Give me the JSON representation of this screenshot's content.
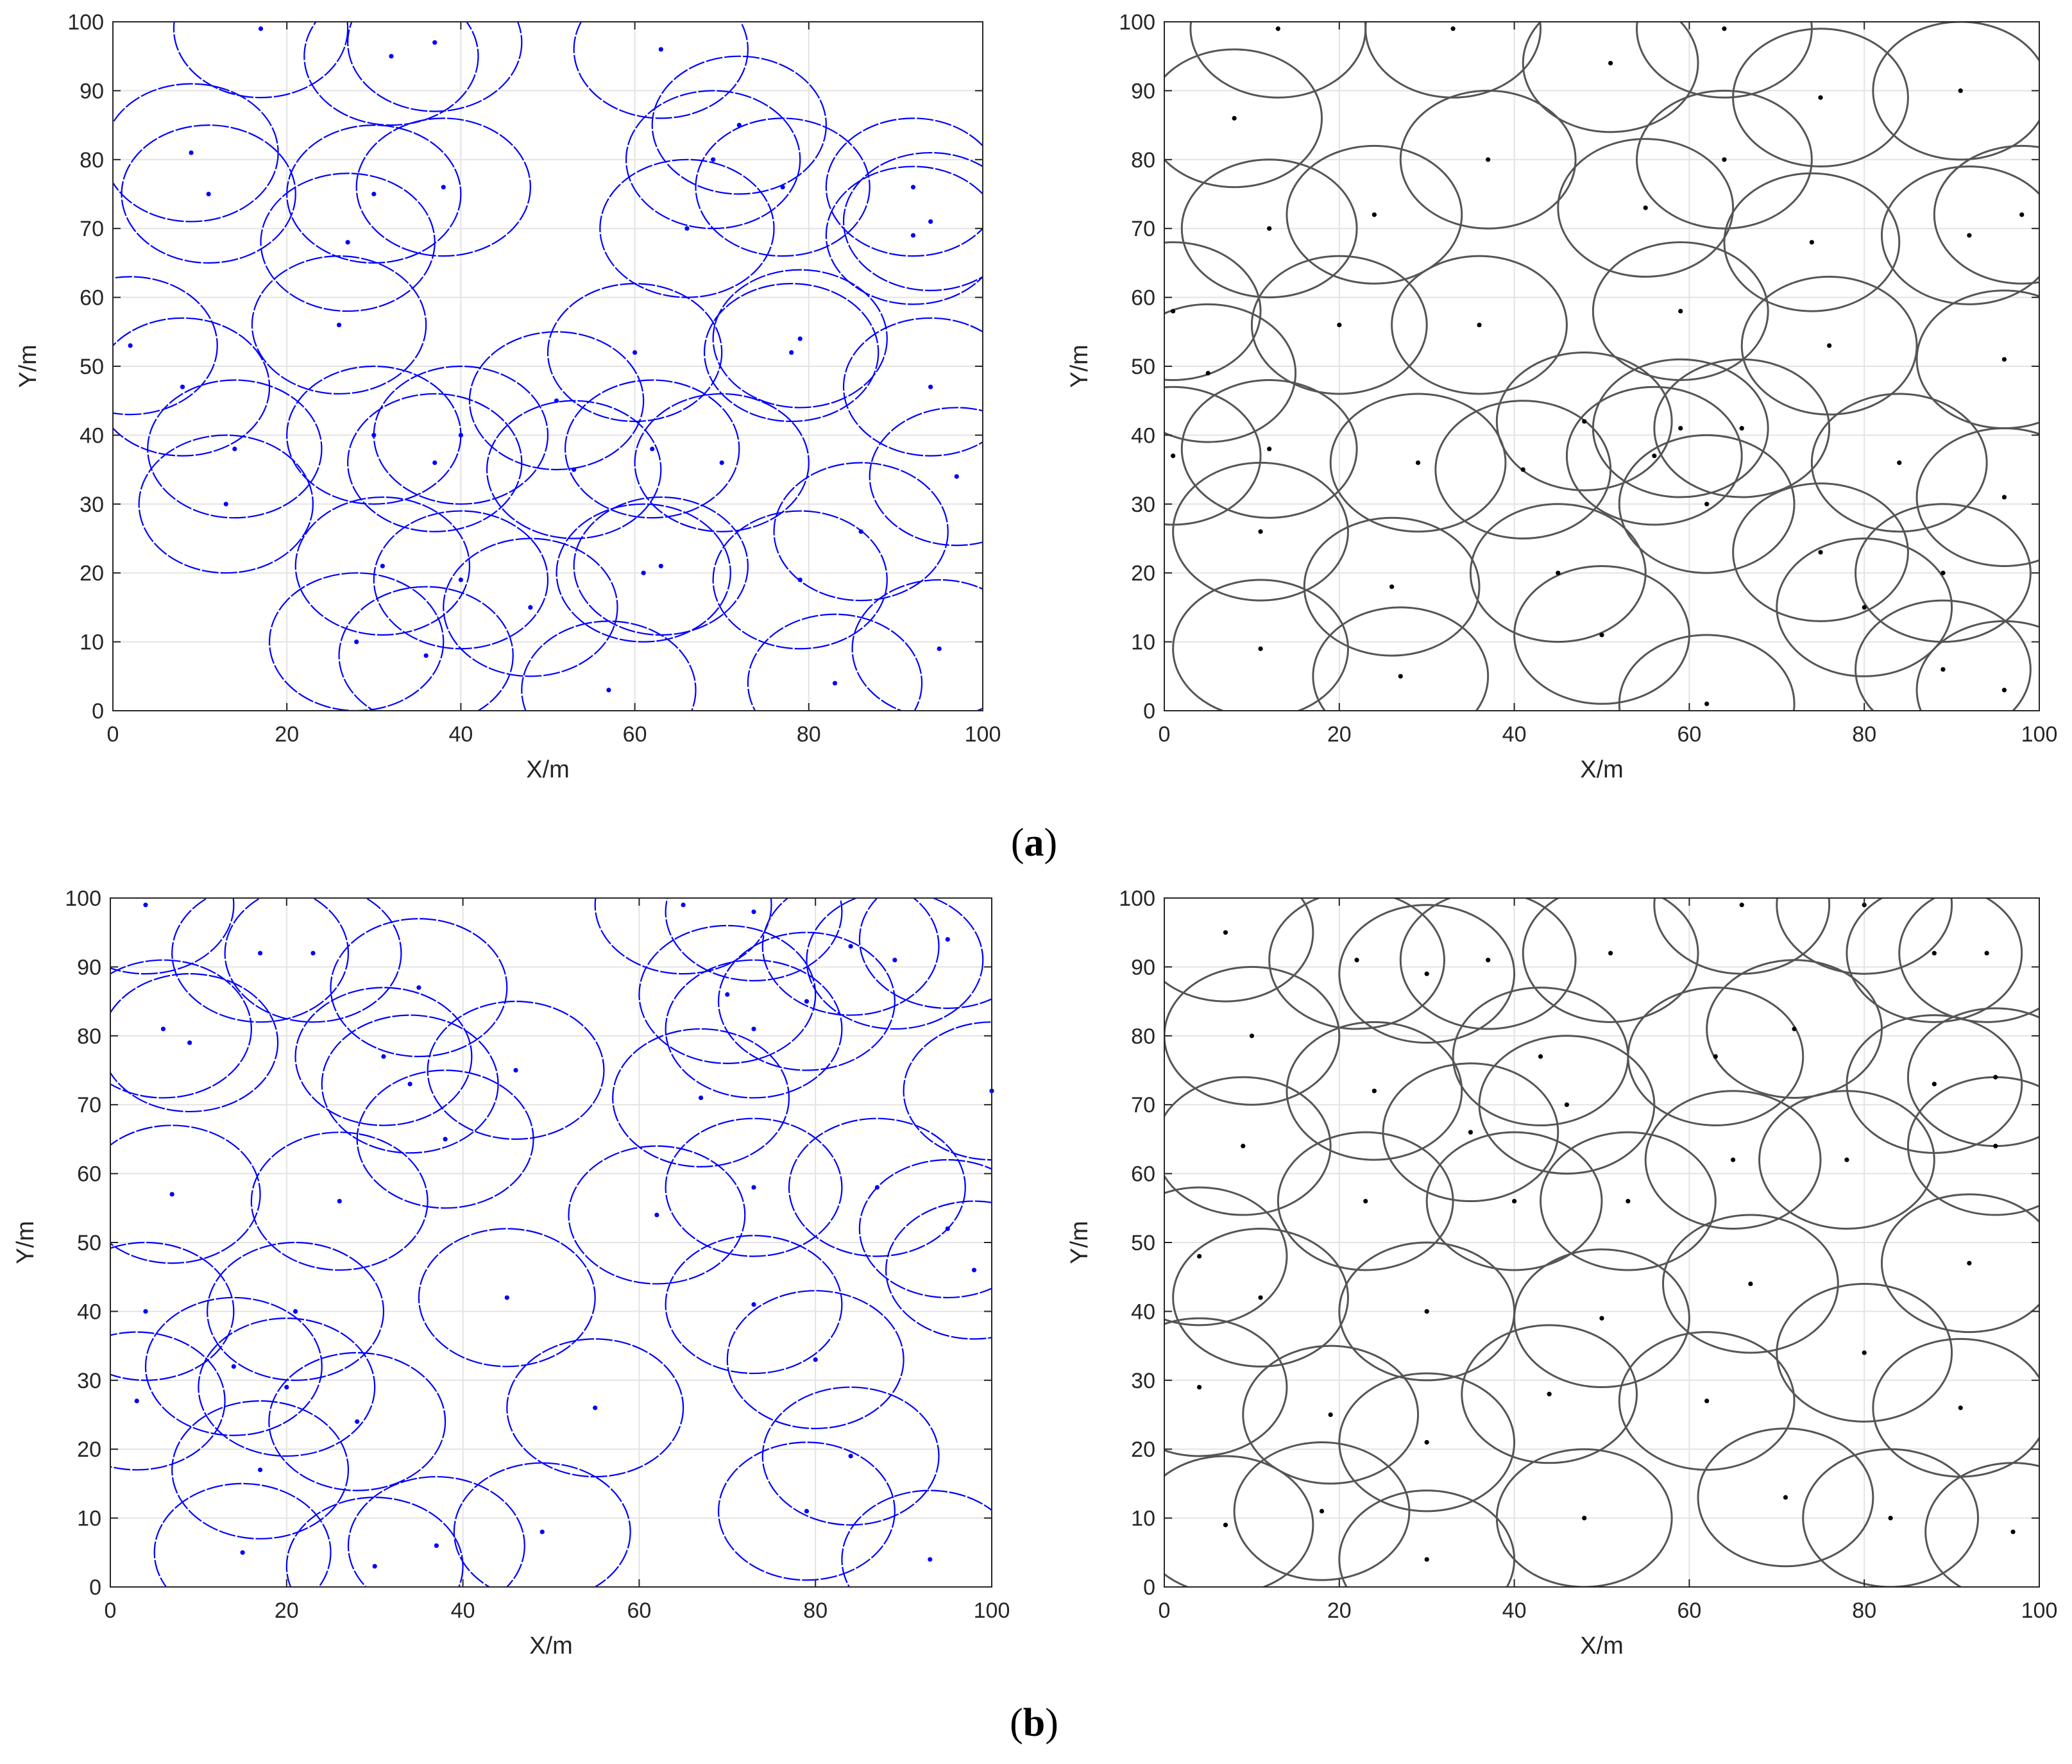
{
  "captions": {
    "a": "a",
    "b": "b"
  },
  "chart_data": [
    {
      "type": "scatter",
      "panel": "a-left",
      "xlabel": "X/m",
      "ylabel": "Y/m",
      "xlim": [
        0,
        100
      ],
      "ylim": [
        0,
        100
      ],
      "xticks": [
        "0",
        "20",
        "40",
        "60",
        "80",
        "100"
      ],
      "yticks": [
        "0",
        "10",
        "20",
        "30",
        "40",
        "50",
        "60",
        "70",
        "80",
        "90",
        "100"
      ],
      "grid": true,
      "color": "#0000ff",
      "sensing_radius": 10,
      "points": [
        [
          17,
          99
        ],
        [
          32,
          95
        ],
        [
          37,
          97
        ],
        [
          63,
          96
        ],
        [
          9,
          81
        ],
        [
          11,
          75
        ],
        [
          30,
          75
        ],
        [
          38,
          76
        ],
        [
          27,
          68
        ],
        [
          66,
          70
        ],
        [
          69,
          80
        ],
        [
          72,
          85
        ],
        [
          77,
          76
        ],
        [
          92,
          76
        ],
        [
          92,
          69
        ],
        [
          94,
          71
        ],
        [
          26,
          56
        ],
        [
          2,
          53
        ],
        [
          8,
          47
        ],
        [
          78,
          52
        ],
        [
          79,
          54
        ],
        [
          60,
          52
        ],
        [
          94,
          47
        ],
        [
          14,
          38
        ],
        [
          13,
          30
        ],
        [
          30,
          40
        ],
        [
          37,
          36
        ],
        [
          40,
          40
        ],
        [
          51,
          45
        ],
        [
          53,
          35
        ],
        [
          62,
          38
        ],
        [
          70,
          36
        ],
        [
          97,
          34
        ],
        [
          31,
          21
        ],
        [
          40,
          19
        ],
        [
          48,
          15
        ],
        [
          61,
          20
        ],
        [
          63,
          21
        ],
        [
          79,
          19
        ],
        [
          86,
          26
        ],
        [
          28,
          10
        ],
        [
          36,
          8
        ],
        [
          57,
          3
        ],
        [
          83,
          4
        ],
        [
          95,
          9
        ]
      ]
    },
    {
      "type": "scatter",
      "panel": "a-right",
      "xlabel": "X/m",
      "ylabel": "Y/m",
      "xlim": [
        0,
        100
      ],
      "ylim": [
        0,
        100
      ],
      "xticks": [
        "0",
        "20",
        "40",
        "60",
        "80",
        "100"
      ],
      "yticks": [
        "0",
        "10",
        "20",
        "30",
        "40",
        "50",
        "60",
        "70",
        "80",
        "90",
        "100"
      ],
      "grid": true,
      "color": "#555555",
      "sensing_radius": 10,
      "points": [
        [
          13,
          99
        ],
        [
          33,
          99
        ],
        [
          64,
          99
        ],
        [
          51,
          94
        ],
        [
          8,
          86
        ],
        [
          75,
          89
        ],
        [
          91,
          90
        ],
        [
          37,
          80
        ],
        [
          64,
          80
        ],
        [
          12,
          70
        ],
        [
          24,
          72
        ],
        [
          55,
          73
        ],
        [
          74,
          68
        ],
        [
          92,
          69
        ],
        [
          98,
          72
        ],
        [
          1,
          58
        ],
        [
          20,
          56
        ],
        [
          36,
          56
        ],
        [
          59,
          58
        ],
        [
          76,
          53
        ],
        [
          96,
          51
        ],
        [
          5,
          49
        ],
        [
          12,
          38
        ],
        [
          1,
          37
        ],
        [
          29,
          36
        ],
        [
          41,
          35
        ],
        [
          48,
          42
        ],
        [
          56,
          37
        ],
        [
          59,
          41
        ],
        [
          66,
          41
        ],
        [
          84,
          36
        ],
        [
          96,
          31
        ],
        [
          62,
          30
        ],
        [
          11,
          26
        ],
        [
          26,
          18
        ],
        [
          45,
          20
        ],
        [
          75,
          23
        ],
        [
          89,
          20
        ],
        [
          80,
          15
        ],
        [
          11,
          9
        ],
        [
          27,
          5
        ],
        [
          50,
          11
        ],
        [
          89,
          6
        ],
        [
          96,
          3
        ],
        [
          62,
          1
        ]
      ]
    },
    {
      "type": "scatter",
      "panel": "b-left",
      "xlabel": "X/m",
      "ylabel": "Y/m",
      "xlim": [
        0,
        100
      ],
      "ylim": [
        0,
        100
      ],
      "xticks": [
        "0",
        "20",
        "40",
        "60",
        "80",
        "100"
      ],
      "yticks": [
        "0",
        "10",
        "20",
        "30",
        "40",
        "50",
        "60",
        "70",
        "80",
        "90",
        "100"
      ],
      "grid": true,
      "color": "#0000ff",
      "sensing_radius": 10,
      "points": [
        [
          4,
          99
        ],
        [
          17,
          92
        ],
        [
          23,
          92
        ],
        [
          65,
          99
        ],
        [
          73,
          98
        ],
        [
          6,
          81
        ],
        [
          9,
          79
        ],
        [
          35,
          87
        ],
        [
          70,
          86
        ],
        [
          73,
          81
        ],
        [
          79,
          85
        ],
        [
          84,
          93
        ],
        [
          89,
          91
        ],
        [
          95,
          94
        ],
        [
          31,
          77
        ],
        [
          34,
          73
        ],
        [
          46,
          75
        ],
        [
          38,
          65
        ],
        [
          67,
          71
        ],
        [
          100,
          72
        ],
        [
          7,
          57
        ],
        [
          26,
          56
        ],
        [
          62,
          54
        ],
        [
          73,
          58
        ],
        [
          87,
          58
        ],
        [
          95,
          52
        ],
        [
          98,
          46
        ],
        [
          4,
          40
        ],
        [
          21,
          40
        ],
        [
          45,
          42
        ],
        [
          73,
          41
        ],
        [
          14,
          32
        ],
        [
          3,
          27
        ],
        [
          20,
          29
        ],
        [
          28,
          24
        ],
        [
          80,
          33
        ],
        [
          55,
          26
        ],
        [
          17,
          17
        ],
        [
          84,
          19
        ],
        [
          15,
          5
        ],
        [
          30,
          3
        ],
        [
          37,
          6
        ],
        [
          49,
          8
        ],
        [
          79,
          11
        ],
        [
          93,
          4
        ]
      ]
    },
    {
      "type": "scatter",
      "panel": "b-right",
      "xlabel": "X/m",
      "ylabel": "Y/m",
      "xlim": [
        0,
        100
      ],
      "ylim": [
        0,
        100
      ],
      "xticks": [
        "0",
        "20",
        "40",
        "60",
        "80",
        "100"
      ],
      "yticks": [
        "0",
        "10",
        "20",
        "30",
        "40",
        "50",
        "60",
        "70",
        "80",
        "90",
        "100"
      ],
      "grid": true,
      "color": "#555555",
      "sensing_radius": 10,
      "points": [
        [
          7,
          95
        ],
        [
          22,
          91
        ],
        [
          30,
          89
        ],
        [
          37,
          91
        ],
        [
          51,
          92
        ],
        [
          66,
          99
        ],
        [
          80,
          99
        ],
        [
          88,
          92
        ],
        [
          94,
          92
        ],
        [
          10,
          80
        ],
        [
          63,
          77
        ],
        [
          72,
          81
        ],
        [
          43,
          77
        ],
        [
          24,
          72
        ],
        [
          46,
          70
        ],
        [
          88,
          73
        ],
        [
          95,
          74
        ],
        [
          35,
          66
        ],
        [
          9,
          64
        ],
        [
          23,
          56
        ],
        [
          40,
          56
        ],
        [
          53,
          56
        ],
        [
          65,
          62
        ],
        [
          78,
          62
        ],
        [
          95,
          64
        ],
        [
          4,
          48
        ],
        [
          11,
          42
        ],
        [
          30,
          40
        ],
        [
          50,
          39
        ],
        [
          67,
          44
        ],
        [
          92,
          47
        ],
        [
          4,
          29
        ],
        [
          19,
          25
        ],
        [
          30,
          21
        ],
        [
          44,
          28
        ],
        [
          62,
          27
        ],
        [
          80,
          34
        ],
        [
          91,
          26
        ],
        [
          18,
          11
        ],
        [
          7,
          9
        ],
        [
          30,
          4
        ],
        [
          48,
          10
        ],
        [
          71,
          13
        ],
        [
          83,
          10
        ],
        [
          97,
          8
        ]
      ]
    }
  ]
}
